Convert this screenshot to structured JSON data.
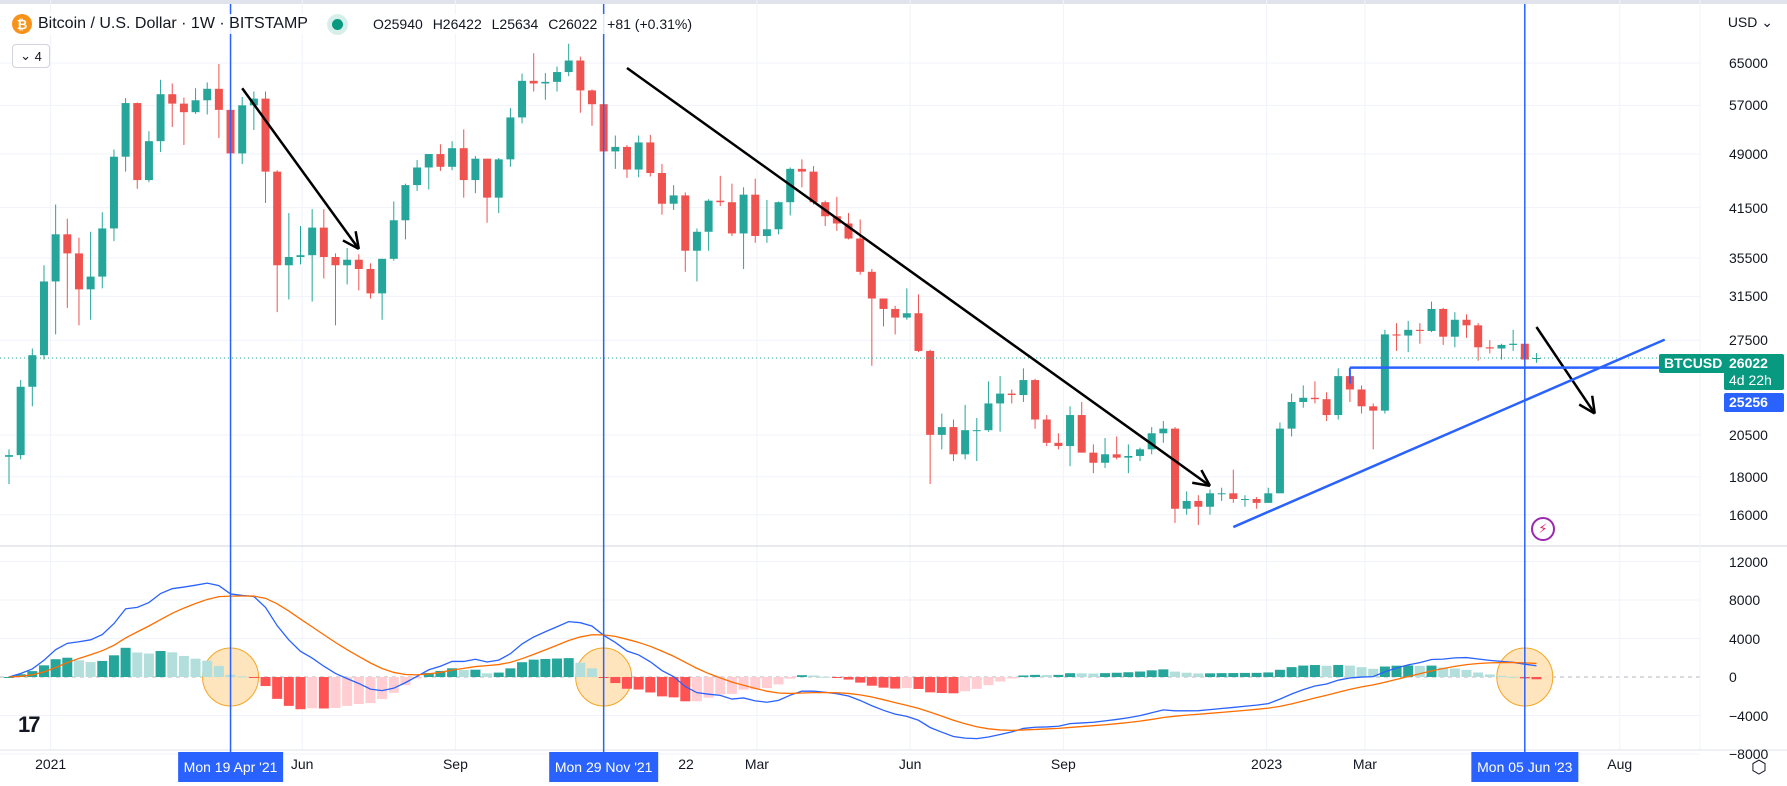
{
  "header": {
    "symbol": "Bitcoin / U.S. Dollar · 1W · BITSTAMP",
    "coin_icon": "₿",
    "open": "O25940",
    "high": "H26422",
    "low": "L25634",
    "close": "C26022",
    "change": "+81 (+0.31%)",
    "indicator_count": "4",
    "currency": "USD"
  },
  "price_axis": {
    "ticks": [
      65000,
      57000,
      49000,
      41500,
      35500,
      31500,
      27500,
      20500,
      18000,
      16000
    ],
    "ticker_tag": "BTCUSD",
    "last_price": "26022",
    "countdown": "4d 22h",
    "line_price": "25256"
  },
  "macd_axis": {
    "ticks": [
      12000,
      8000,
      4000,
      0,
      -4000,
      -8000
    ]
  },
  "time_axis": {
    "labels": [
      {
        "text": "2021",
        "date": "2021-01-01"
      },
      {
        "text": "Jun",
        "date": "2021-06-01"
      },
      {
        "text": "Sep",
        "date": "2021-09-01"
      },
      {
        "text": "Mar",
        "date": "2022-03-01"
      },
      {
        "text": "Jun",
        "date": "2022-06-01"
      },
      {
        "text": "Sep",
        "date": "2022-09-01"
      },
      {
        "text": "2023",
        "date": "2023-01-01"
      },
      {
        "text": "Mar",
        "date": "2023-03-01"
      },
      {
        "text": "Aug",
        "date": "2023-08-01"
      }
    ],
    "partial_label": "22",
    "markers": [
      {
        "text": "Mon 19 Apr '21",
        "date": "2021-04-19"
      },
      {
        "text": "Mon 29 Nov '21",
        "date": "2021-11-29"
      },
      {
        "text": "Mon 05 Jun '23",
        "date": "2023-06-05"
      }
    ]
  },
  "colors": {
    "up": "#26a69a",
    "down": "#ef5350",
    "macd": "#2962ff",
    "signal": "#ff6d00",
    "hist_up_strong": "#26a69a",
    "hist_up_weak": "#b2dfdb",
    "hist_down_strong": "#ff5252",
    "hist_down_weak": "#ffcdd2",
    "marker": "#2962ff",
    "highlight": "#ffe0b2"
  },
  "icons": {
    "logo": "tradingview-logo",
    "lightning": "lightning-icon",
    "settings": "settings-icon"
  },
  "chart_data": {
    "type": "candlestick",
    "title": "Bitcoin / U.S. Dollar · 1W · BITSTAMP",
    "scale": "log",
    "ylim": [
      15000,
      72000
    ],
    "start": "2020-12-07",
    "interval": "1W",
    "ohlc": [
      [
        19150,
        19600,
        17600,
        19250
      ],
      [
        19250,
        24300,
        19000,
        23800
      ],
      [
        23800,
        26800,
        22400,
        26250
      ],
      [
        26250,
        34700,
        25900,
        33000
      ],
      [
        33000,
        41900,
        28000,
        38200
      ],
      [
        38200,
        40100,
        30400,
        36000
      ],
      [
        36000,
        37800,
        28800,
        32200
      ],
      [
        32200,
        38500,
        29300,
        33500
      ],
      [
        33500,
        40900,
        32300,
        38900
      ],
      [
        38900,
        49700,
        37400,
        48600
      ],
      [
        48600,
        58300,
        46400,
        57400
      ],
      [
        57400,
        57500,
        44000,
        45200
      ],
      [
        45200,
        52600,
        44900,
        51000
      ],
      [
        51000,
        61700,
        49300,
        59000
      ],
      [
        59000,
        61000,
        53300,
        57300
      ],
      [
        57300,
        58400,
        50400,
        55800
      ],
      [
        55800,
        60100,
        55500,
        57900
      ],
      [
        57900,
        61200,
        55400,
        60000
      ],
      [
        60000,
        64800,
        51500,
        56200
      ],
      [
        56200,
        57000,
        47000,
        49100
      ],
      [
        49100,
        58500,
        47500,
        57000
      ],
      [
        57000,
        59500,
        52800,
        58200
      ],
      [
        58200,
        59500,
        42100,
        46400
      ],
      [
        46400,
        46600,
        30000,
        34700
      ],
      [
        34700,
        40800,
        31200,
        35600
      ],
      [
        35600,
        39200,
        34800,
        35800
      ],
      [
        35800,
        41300,
        31000,
        39000
      ],
      [
        39000,
        41300,
        33300,
        35600
      ],
      [
        35600,
        36000,
        28800,
        34700
      ],
      [
        34700,
        36600,
        32700,
        35300
      ],
      [
        35300,
        35900,
        32100,
        34300
      ],
      [
        34300,
        34900,
        31300,
        31800
      ],
      [
        31800,
        35400,
        29300,
        35400
      ],
      [
        35400,
        42300,
        35200,
        39900
      ],
      [
        39900,
        44700,
        37600,
        44500
      ],
      [
        44500,
        48100,
        43700,
        47000
      ],
      [
        47000,
        49000,
        43900,
        49000
      ],
      [
        49000,
        50500,
        46500,
        47100
      ],
      [
        47100,
        51000,
        46600,
        49900
      ],
      [
        49900,
        52900,
        42800,
        45200
      ],
      [
        45200,
        48700,
        43400,
        48300
      ],
      [
        48300,
        48300,
        39600,
        42800
      ],
      [
        42800,
        48400,
        40800,
        48200
      ],
      [
        48200,
        56500,
        47100,
        54900
      ],
      [
        54900,
        62900,
        53900,
        61500
      ],
      [
        61500,
        67000,
        59500,
        61000
      ],
      [
        61000,
        63000,
        58000,
        61300
      ],
      [
        61300,
        64300,
        59500,
        63200
      ],
      [
        63200,
        69000,
        62400,
        65500
      ],
      [
        65500,
        66300,
        55700,
        59700
      ],
      [
        59700,
        59900,
        53500,
        57200
      ],
      [
        57200,
        59100,
        42000,
        49400
      ],
      [
        49400,
        51900,
        46800,
        50100
      ],
      [
        50100,
        50400,
        45500,
        46700
      ],
      [
        46700,
        51900,
        45600,
        50800
      ],
      [
        50800,
        52000,
        45700,
        46200
      ],
      [
        46200,
        47500,
        40600,
        42000
      ],
      [
        42000,
        44500,
        41200,
        43100
      ],
      [
        43100,
        43500,
        34000,
        36300
      ],
      [
        36300,
        38900,
        33000,
        38500
      ],
      [
        38500,
        42600,
        36300,
        42400
      ],
      [
        42400,
        45800,
        41700,
        42200
      ],
      [
        42200,
        44700,
        38000,
        38300
      ],
      [
        38300,
        44200,
        34300,
        43200
      ],
      [
        43200,
        45400,
        37200,
        38000
      ],
      [
        38000,
        42500,
        37200,
        38800
      ],
      [
        38800,
        42300,
        38200,
        42200
      ],
      [
        42200,
        47000,
        40500,
        46800
      ],
      [
        46800,
        48200,
        44200,
        46400
      ],
      [
        46400,
        47200,
        41900,
        42200
      ],
      [
        42200,
        42400,
        39200,
        40400
      ],
      [
        40400,
        42900,
        38600,
        39500
      ],
      [
        39500,
        40800,
        37600,
        37700
      ],
      [
        37700,
        40000,
        33700,
        34000
      ],
      [
        34000,
        34300,
        25400,
        31300
      ],
      [
        31300,
        31300,
        28700,
        30300
      ],
      [
        30300,
        30600,
        28000,
        29500
      ],
      [
        29500,
        32300,
        29300,
        29900
      ],
      [
        29900,
        31700,
        26500,
        26600
      ],
      [
        26600,
        26700,
        17600,
        20500
      ],
      [
        20500,
        21900,
        19600,
        21000
      ],
      [
        21000,
        21500,
        18900,
        19300
      ],
      [
        19300,
        22500,
        19000,
        20800
      ],
      [
        20800,
        21600,
        18900,
        20800
      ],
      [
        20800,
        24200,
        20700,
        22600
      ],
      [
        22600,
        24600,
        20700,
        23300
      ],
      [
        23300,
        23600,
        22600,
        23200
      ],
      [
        23200,
        25200,
        22700,
        24300
      ],
      [
        24300,
        24400,
        20900,
        21500
      ],
      [
        21500,
        21800,
        19800,
        20000
      ],
      [
        20000,
        20600,
        19600,
        19800
      ],
      [
        19800,
        22400,
        18600,
        21800
      ],
      [
        21800,
        22700,
        19400,
        19400
      ],
      [
        19400,
        19900,
        18200,
        18800
      ],
      [
        18800,
        20300,
        18500,
        19300
      ],
      [
        19300,
        20400,
        19000,
        19100
      ],
      [
        19100,
        19900,
        18200,
        19200
      ],
      [
        19200,
        19700,
        18900,
        19600
      ],
      [
        19600,
        21000,
        19300,
        20600
      ],
      [
        20600,
        21400,
        20000,
        20900
      ],
      [
        20900,
        21000,
        15600,
        16300
      ],
      [
        16300,
        17200,
        16000,
        16700
      ],
      [
        16700,
        17000,
        15500,
        16400
      ],
      [
        16400,
        17300,
        16000,
        17100
      ],
      [
        17100,
        17400,
        16700,
        17100
      ],
      [
        17100,
        18400,
        16600,
        16800
      ],
      [
        16800,
        17000,
        16400,
        16800
      ],
      [
        16800,
        16900,
        16300,
        16600
      ],
      [
        16600,
        17400,
        16600,
        17100
      ],
      [
        17100,
        21300,
        17100,
        20900
      ],
      [
        20900,
        23300,
        20400,
        22700
      ],
      [
        22700,
        23900,
        22300,
        23000
      ],
      [
        23000,
        24200,
        22600,
        22900
      ],
      [
        22900,
        23400,
        21400,
        21800
      ],
      [
        21800,
        25200,
        21500,
        24600
      ],
      [
        24600,
        25100,
        22700,
        23600
      ],
      [
        23600,
        23900,
        21900,
        22400
      ],
      [
        22400,
        22600,
        19600,
        22100
      ],
      [
        22100,
        28400,
        21900,
        28000
      ],
      [
        28000,
        29000,
        26600,
        27900
      ],
      [
        27900,
        29200,
        26500,
        28400
      ],
      [
        28400,
        29000,
        27200,
        28300
      ],
      [
        28300,
        31000,
        28200,
        30300
      ],
      [
        30300,
        30400,
        27100,
        27800
      ],
      [
        27800,
        30000,
        26900,
        29300
      ],
      [
        29300,
        29800,
        27700,
        28800
      ],
      [
        28800,
        29000,
        25800,
        26900
      ],
      [
        26900,
        27500,
        26400,
        26800
      ],
      [
        26800,
        27200,
        25900,
        27100
      ],
      [
        27100,
        28400,
        26600,
        27200
      ],
      [
        27200,
        27400,
        25400,
        25900
      ],
      [
        25940,
        26422,
        25634,
        26022
      ]
    ],
    "indicator": {
      "type": "MACD",
      "params": [
        12,
        26,
        9
      ],
      "ylim": [
        -9000,
        13500
      ]
    },
    "annotations": {
      "arrows": [
        {
          "from": [
            "2021-04-26",
            60100
          ],
          "to": [
            "2021-07-05",
            36500
          ]
        },
        {
          "from": [
            "2021-12-13",
            64000
          ],
          "to": [
            "2022-11-28",
            17500
          ]
        },
        {
          "from": [
            "2023-06-12",
            28650
          ],
          "to": [
            "2023-07-17",
            21900
          ]
        }
      ],
      "trendline": {
        "from": [
          "2022-12-12",
          15400
        ],
        "to": [
          "2023-08-28",
          27550
        ]
      },
      "horizontal_line": {
        "from": "2023-02-20",
        "price": 25256
      }
    }
  }
}
